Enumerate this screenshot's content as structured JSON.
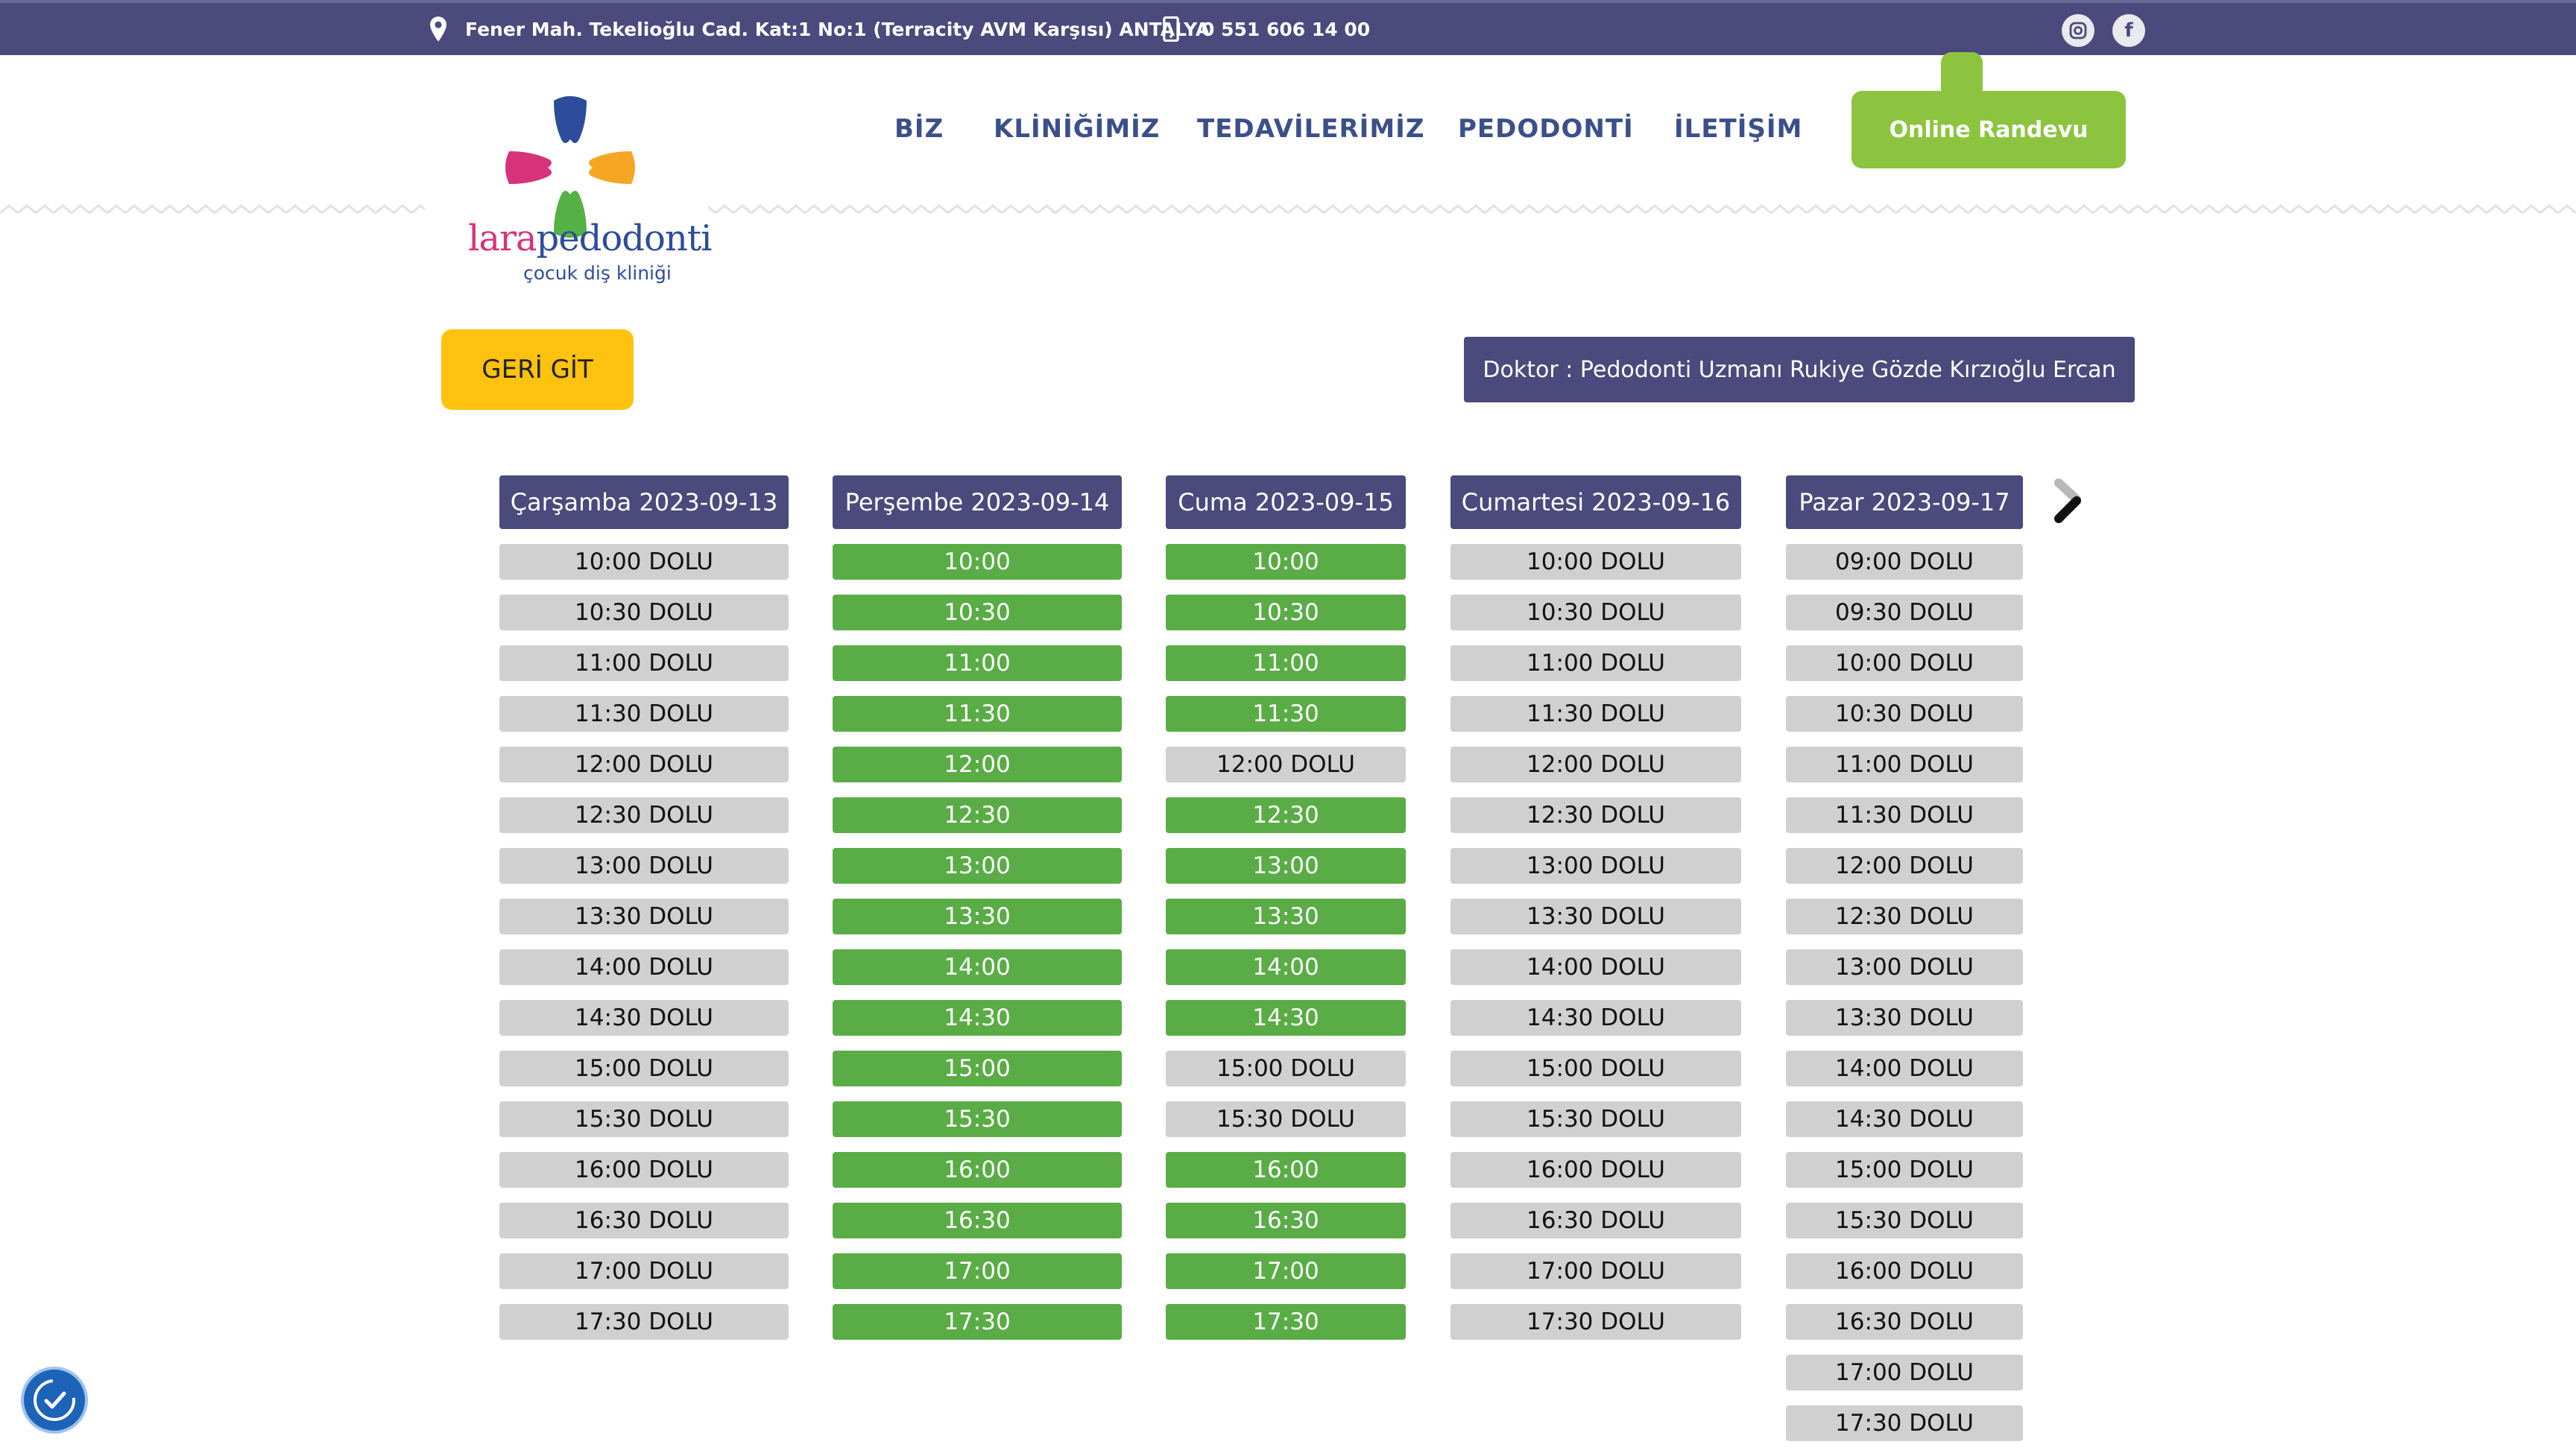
{
  "topbar": {
    "address": "Fener Mah. Tekelioğlu Cad. Kat:1 No:1 (Terracity AVM Karşısı) ANTALYA",
    "phone": "0 551 606 14 00"
  },
  "brand": {
    "name_part1": "lara",
    "name_part2": "pedodonti",
    "tagline": "çocuk diş kliniği"
  },
  "nav": {
    "items": [
      "BİZ",
      "KLİNİĞİMİZ",
      "TEDAVİLERİMİZ",
      "PEDODONTİ",
      "İLETİŞİM"
    ],
    "cta": "Online Randevu"
  },
  "actions": {
    "back": "GERİ GİT",
    "doctor": "Doktor : Pedodonti Uzmanı Rukiye Gözde Kırzıoğlu Ercan"
  },
  "calendar": {
    "days": [
      {
        "header": "Çarşamba 2023-09-13",
        "slots": [
          {
            "text": "10:00 DOLU",
            "available": false
          },
          {
            "text": "10:30 DOLU",
            "available": false
          },
          {
            "text": "11:00 DOLU",
            "available": false
          },
          {
            "text": "11:30 DOLU",
            "available": false
          },
          {
            "text": "12:00 DOLU",
            "available": false
          },
          {
            "text": "12:30 DOLU",
            "available": false
          },
          {
            "text": "13:00 DOLU",
            "available": false
          },
          {
            "text": "13:30 DOLU",
            "available": false
          },
          {
            "text": "14:00 DOLU",
            "available": false
          },
          {
            "text": "14:30 DOLU",
            "available": false
          },
          {
            "text": "15:00 DOLU",
            "available": false
          },
          {
            "text": "15:30 DOLU",
            "available": false
          },
          {
            "text": "16:00 DOLU",
            "available": false
          },
          {
            "text": "16:30 DOLU",
            "available": false
          },
          {
            "text": "17:00 DOLU",
            "available": false
          },
          {
            "text": "17:30 DOLU",
            "available": false
          }
        ]
      },
      {
        "header": "Perşembe 2023-09-14",
        "slots": [
          {
            "text": "10:00",
            "available": true
          },
          {
            "text": "10:30",
            "available": true
          },
          {
            "text": "11:00",
            "available": true
          },
          {
            "text": "11:30",
            "available": true
          },
          {
            "text": "12:00",
            "available": true
          },
          {
            "text": "12:30",
            "available": true
          },
          {
            "text": "13:00",
            "available": true
          },
          {
            "text": "13:30",
            "available": true
          },
          {
            "text": "14:00",
            "available": true
          },
          {
            "text": "14:30",
            "available": true
          },
          {
            "text": "15:00",
            "available": true
          },
          {
            "text": "15:30",
            "available": true
          },
          {
            "text": "16:00",
            "available": true
          },
          {
            "text": "16:30",
            "available": true
          },
          {
            "text": "17:00",
            "available": true
          },
          {
            "text": "17:30",
            "available": true
          }
        ]
      },
      {
        "header": "Cuma 2023-09-15",
        "slots": [
          {
            "text": "10:00",
            "available": true
          },
          {
            "text": "10:30",
            "available": true
          },
          {
            "text": "11:00",
            "available": true
          },
          {
            "text": "11:30",
            "available": true
          },
          {
            "text": "12:00 DOLU",
            "available": false
          },
          {
            "text": "12:30",
            "available": true
          },
          {
            "text": "13:00",
            "available": true
          },
          {
            "text": "13:30",
            "available": true
          },
          {
            "text": "14:00",
            "available": true
          },
          {
            "text": "14:30",
            "available": true
          },
          {
            "text": "15:00 DOLU",
            "available": false
          },
          {
            "text": "15:30 DOLU",
            "available": false
          },
          {
            "text": "16:00",
            "available": true
          },
          {
            "text": "16:30",
            "available": true
          },
          {
            "text": "17:00",
            "available": true
          },
          {
            "text": "17:30",
            "available": true
          }
        ]
      },
      {
        "header": "Cumartesi 2023-09-16",
        "slots": [
          {
            "text": "10:00 DOLU",
            "available": false
          },
          {
            "text": "10:30 DOLU",
            "available": false
          },
          {
            "text": "11:00 DOLU",
            "available": false
          },
          {
            "text": "11:30 DOLU",
            "available": false
          },
          {
            "text": "12:00 DOLU",
            "available": false
          },
          {
            "text": "12:30 DOLU",
            "available": false
          },
          {
            "text": "13:00 DOLU",
            "available": false
          },
          {
            "text": "13:30 DOLU",
            "available": false
          },
          {
            "text": "14:00 DOLU",
            "available": false
          },
          {
            "text": "14:30 DOLU",
            "available": false
          },
          {
            "text": "15:00 DOLU",
            "available": false
          },
          {
            "text": "15:30 DOLU",
            "available": false
          },
          {
            "text": "16:00 DOLU",
            "available": false
          },
          {
            "text": "16:30 DOLU",
            "available": false
          },
          {
            "text": "17:00 DOLU",
            "available": false
          },
          {
            "text": "17:30 DOLU",
            "available": false
          }
        ]
      },
      {
        "header": "Pazar 2023-09-17",
        "slots": [
          {
            "text": "09:00 DOLU",
            "available": false
          },
          {
            "text": "09:30 DOLU",
            "available": false
          },
          {
            "text": "10:00 DOLU",
            "available": false
          },
          {
            "text": "10:30 DOLU",
            "available": false
          },
          {
            "text": "11:00 DOLU",
            "available": false
          },
          {
            "text": "11:30 DOLU",
            "available": false
          },
          {
            "text": "12:00 DOLU",
            "available": false
          },
          {
            "text": "12:30 DOLU",
            "available": false
          },
          {
            "text": "13:00 DOLU",
            "available": false
          },
          {
            "text": "13:30 DOLU",
            "available": false
          },
          {
            "text": "14:00 DOLU",
            "available": false
          },
          {
            "text": "14:30 DOLU",
            "available": false
          },
          {
            "text": "15:00 DOLU",
            "available": false
          },
          {
            "text": "15:30 DOLU",
            "available": false
          },
          {
            "text": "16:00 DOLU",
            "available": false
          },
          {
            "text": "16:30 DOLU",
            "available": false
          },
          {
            "text": "17:00 DOLU",
            "available": false
          },
          {
            "text": "17:30 DOLU",
            "available": false
          }
        ]
      }
    ]
  },
  "colors": {
    "primary": "#4a4a7c",
    "available": "#5aac46",
    "full": "#d0d0d0",
    "cta": "#8cc43f",
    "back": "#ffc20e"
  },
  "icons": [
    "map-pin-icon",
    "mobile-phone-icon",
    "instagram-icon",
    "facebook-icon",
    "chevron-right-icon",
    "accessibility-icon"
  ]
}
